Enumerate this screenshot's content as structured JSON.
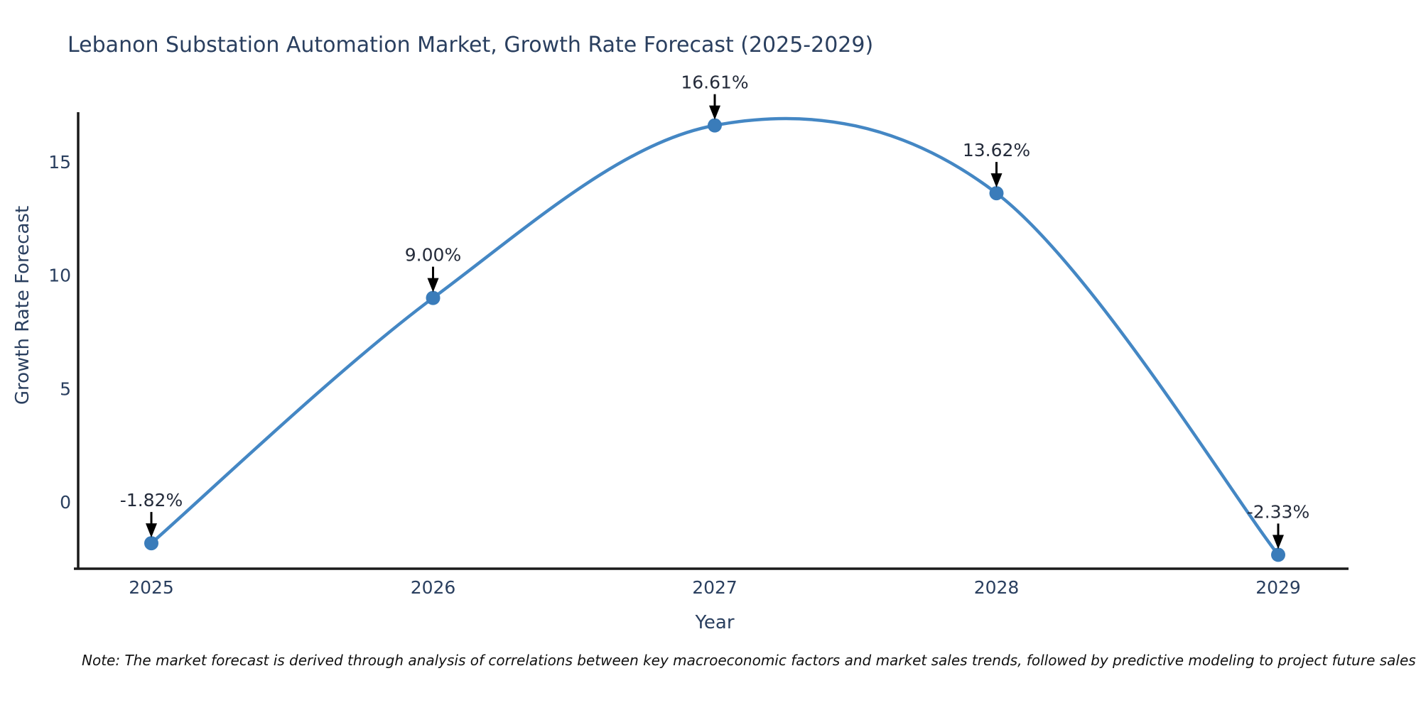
{
  "chart_data": {
    "type": "line",
    "line_shape": "spline",
    "title": "Lebanon Substation Automation Market, Growth Rate Forecast (2025-2029)",
    "xlabel": "Year",
    "ylabel": "Growth Rate Forecast",
    "x": [
      2025,
      2026,
      2027,
      2028,
      2029
    ],
    "values": [
      -1.82,
      9.0,
      16.61,
      13.62,
      -2.33
    ],
    "labels": [
      "-1.82%",
      "9.00%",
      "16.61%",
      "13.62%",
      "-2.33%"
    ],
    "yticks": [
      0,
      5,
      10,
      15
    ],
    "xlim": [
      2024.73,
      2029.25
    ],
    "ylim": [
      -3.0,
      17.2
    ],
    "grid": false,
    "legend": false,
    "line_color": "#4487c4",
    "marker_color": "#3a7cba",
    "annotation_arrow_color": "#000000",
    "text_color": "#2a3f5f",
    "axis_color": "#1a1a1a",
    "note": "Note: The market forecast is derived through analysis of correlations between key macroeconomic factors and market sales trends, followed by predictive modeling to project future sales"
  }
}
